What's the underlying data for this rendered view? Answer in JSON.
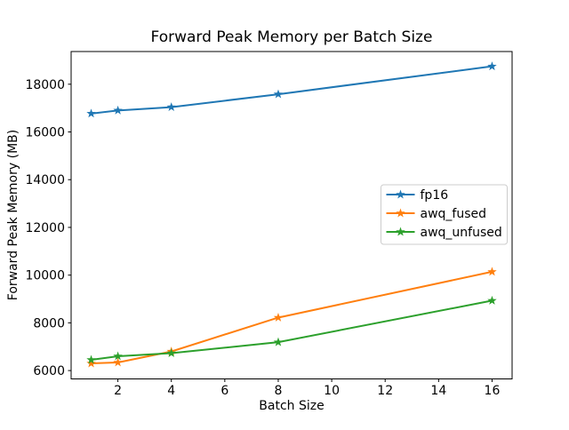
{
  "chart_data": {
    "type": "line",
    "title": "Forward Peak Memory per Batch Size",
    "xlabel": "Batch Size",
    "ylabel": "Forward Peak Memory (MB)",
    "x": [
      1,
      2,
      4,
      8,
      16
    ],
    "series": [
      {
        "name": "fp16",
        "color": "#1f77b4",
        "marker": "star",
        "values": [
          16770,
          16900,
          17040,
          17580,
          18750
        ]
      },
      {
        "name": "awq_fused",
        "color": "#ff7f0e",
        "marker": "star",
        "values": [
          6300,
          6340,
          6800,
          8220,
          10140
        ]
      },
      {
        "name": "awq_unfused",
        "color": "#2ca02c",
        "marker": "star",
        "values": [
          6450,
          6600,
          6730,
          7190,
          8930
        ]
      }
    ],
    "xticks": [
      2,
      4,
      6,
      8,
      10,
      12,
      14,
      16
    ],
    "yticks": [
      6000,
      8000,
      10000,
      12000,
      14000,
      16000,
      18000
    ],
    "xlim": [
      0.25,
      16.75
    ],
    "ylim": [
      5650,
      19370
    ],
    "grid": false,
    "legend_position": "center-right",
    "spine_color": "#000000",
    "legend_border_color": "#cccccc",
    "background": "#ffffff"
  }
}
